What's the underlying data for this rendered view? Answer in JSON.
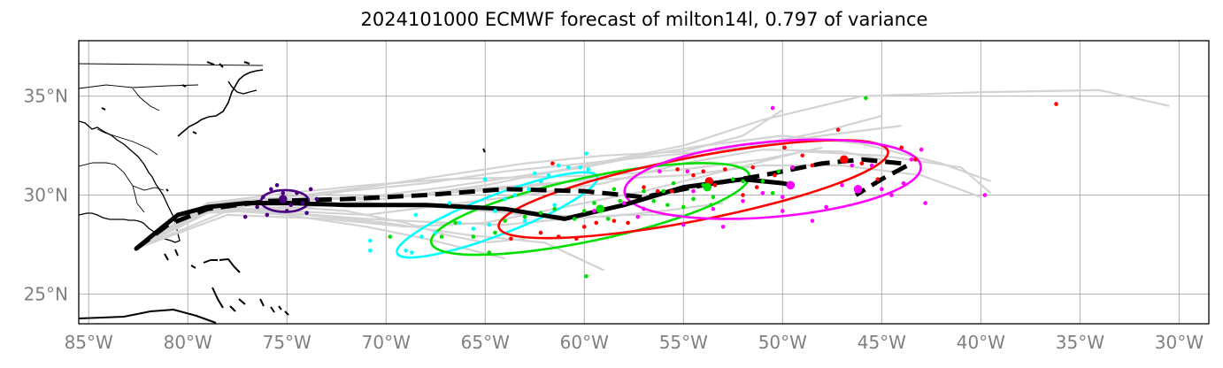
{
  "title": "2024101000 ECMWF forecast of milton14l, 0.797 of variance",
  "map": {
    "projection": "PlateCarree",
    "lon_range": [
      -85.5,
      -28.5
    ],
    "lat_range": [
      23.5,
      37.8
    ],
    "lon_ticks": [
      -85,
      -80,
      -75,
      -70,
      -65,
      -60,
      -55,
      -50,
      -45,
      -40,
      -35,
      -30
    ],
    "lon_tick_labels": [
      "85°W",
      "80°W",
      "75°W",
      "70°W",
      "65°W",
      "60°W",
      "55°W",
      "50°W",
      "45°W",
      "40°W",
      "35°W",
      "30°W"
    ],
    "lat_ticks": [
      25,
      30,
      35
    ],
    "lat_tick_labels": [
      "25°N",
      "30°N",
      "35°N"
    ],
    "grid": true,
    "colors": {
      "grid": "#b0b0b0",
      "coast": "#000000",
      "ensemble": "#d3d3d3",
      "mean_track": "#000000",
      "cluster_initial": "#4b0082",
      "cluster_cyan": "#00ffff",
      "cluster_green": "#00e000",
      "cluster_red": "#ff0000",
      "cluster_magenta": "#ff00ff"
    }
  },
  "tracks": {
    "solid_mean": [
      [
        -82.6,
        27.3
      ],
      [
        -81.5,
        28.2
      ],
      [
        -80.5,
        29.0
      ],
      [
        -79.0,
        29.4
      ],
      [
        -77.0,
        29.6
      ],
      [
        -75.0,
        29.6
      ],
      [
        -72.0,
        29.5
      ],
      [
        -68.0,
        29.5
      ],
      [
        -64.0,
        29.3
      ],
      [
        -61.0,
        28.8
      ],
      [
        -58.0,
        29.5
      ],
      [
        -55.0,
        30.4
      ],
      [
        -52.0,
        30.8
      ],
      [
        -50.0,
        30.6
      ],
      [
        -49.5,
        30.5
      ]
    ],
    "dashed_mean": [
      [
        -82.6,
        27.3
      ],
      [
        -81.0,
        28.5
      ],
      [
        -79.0,
        29.3
      ],
      [
        -76.0,
        29.7
      ],
      [
        -72.0,
        29.8
      ],
      [
        -68.0,
        30.0
      ],
      [
        -64.0,
        30.3
      ],
      [
        -60.0,
        30.2
      ],
      [
        -57.0,
        29.9
      ],
      [
        -54.0,
        30.5
      ],
      [
        -51.0,
        31.0
      ],
      [
        -48.0,
        31.6
      ],
      [
        -46.0,
        31.8
      ],
      [
        -44.0,
        31.6
      ],
      [
        -43.7,
        31.5
      ],
      [
        -45.0,
        30.8
      ],
      [
        -46.3,
        30.0
      ]
    ],
    "ensemble": [
      [
        [
          -82.6,
          27.3
        ],
        [
          -80,
          29
        ],
        [
          -76,
          29.6
        ],
        [
          -72,
          30.2
        ],
        [
          -68,
          30.6
        ],
        [
          -64,
          31.2
        ],
        [
          -60,
          31.6
        ],
        [
          -56,
          32.0
        ],
        [
          -52,
          32.4
        ],
        [
          -48,
          33.0
        ],
        [
          -44,
          33.5
        ]
      ],
      [
        [
          -82.6,
          27.3
        ],
        [
          -79,
          29.5
        ],
        [
          -75,
          29.8
        ],
        [
          -70,
          29.8
        ],
        [
          -65,
          30.5
        ],
        [
          -60,
          31.5
        ],
        [
          -55,
          32.5
        ],
        [
          -51,
          33.8
        ],
        [
          -46,
          35.0
        ],
        [
          -40,
          35.2
        ],
        [
          -34,
          35.3
        ],
        [
          -30.5,
          34.5
        ]
      ],
      [
        [
          -82.6,
          27.3
        ],
        [
          -78,
          29.2
        ],
        [
          -74,
          29.0
        ],
        [
          -70,
          28.6
        ],
        [
          -66,
          28.0
        ],
        [
          -62,
          27.6
        ],
        [
          -59,
          26.2
        ]
      ],
      [
        [
          -82.6,
          27.3
        ],
        [
          -78,
          29.0
        ],
        [
          -73,
          28.8
        ],
        [
          -69,
          28.4
        ],
        [
          -65,
          28.6
        ],
        [
          -61,
          29.4
        ],
        [
          -57,
          30.2
        ],
        [
          -53,
          31.2
        ],
        [
          -49,
          32.2
        ],
        [
          -45,
          32.0
        ],
        [
          -41,
          31.4
        ],
        [
          -39.5,
          30.1
        ]
      ],
      [
        [
          -82.6,
          27.3
        ],
        [
          -79,
          29.4
        ],
        [
          -75,
          29.2
        ],
        [
          -71,
          29.0
        ],
        [
          -67,
          29.5
        ],
        [
          -63,
          30.0
        ],
        [
          -59,
          30.6
        ],
        [
          -55,
          31.6
        ],
        [
          -51,
          32.3
        ],
        [
          -47,
          32.2
        ],
        [
          -44,
          31.6
        ]
      ],
      [
        [
          -82.6,
          27.3
        ],
        [
          -79,
          29.6
        ],
        [
          -75,
          29.9
        ],
        [
          -71,
          30.4
        ],
        [
          -67,
          31.0
        ],
        [
          -63,
          31.6
        ],
        [
          -59,
          32.0
        ],
        [
          -55,
          32.2
        ],
        [
          -52,
          33.0
        ],
        [
          -50,
          34.3
        ]
      ],
      [
        [
          -82.6,
          27.3
        ],
        [
          -79,
          29.3
        ],
        [
          -75,
          29.0
        ],
        [
          -71,
          28.4
        ],
        [
          -68,
          27.8
        ],
        [
          -66,
          27.3
        ],
        [
          -64,
          26.8
        ]
      ],
      [
        [
          -82.6,
          27.3
        ],
        [
          -79,
          29.1
        ],
        [
          -75,
          29.3
        ],
        [
          -71,
          29.7
        ],
        [
          -67,
          30.2
        ],
        [
          -63,
          30.5
        ],
        [
          -59,
          30.8
        ],
        [
          -55,
          31.0
        ],
        [
          -51,
          31.5
        ],
        [
          -47,
          31.5
        ],
        [
          -43,
          31.0
        ],
        [
          -40,
          29.9
        ]
      ],
      [
        [
          -82.6,
          27.3
        ],
        [
          -79,
          29.4
        ],
        [
          -75,
          29.5
        ],
        [
          -71,
          29.6
        ],
        [
          -67,
          29.4
        ],
        [
          -63,
          29.0
        ],
        [
          -59,
          28.9
        ],
        [
          -56,
          29.2
        ],
        [
          -53,
          29.6
        ]
      ],
      [
        [
          -82.6,
          27.3
        ],
        [
          -79,
          29.5
        ],
        [
          -75,
          29.7
        ],
        [
          -71,
          29.9
        ],
        [
          -67,
          30.1
        ],
        [
          -63,
          30.4
        ],
        [
          -60,
          30.8
        ],
        [
          -57,
          31.4
        ],
        [
          -54,
          32.0
        ],
        [
          -51,
          32.6
        ],
        [
          -48,
          33.2
        ],
        [
          -45,
          34.0
        ]
      ],
      [
        [
          -82.6,
          27.3
        ],
        [
          -79,
          29.3
        ],
        [
          -75,
          29.1
        ],
        [
          -71,
          28.8
        ],
        [
          -67,
          28.6
        ],
        [
          -64,
          28.5
        ],
        [
          -61,
          28.8
        ],
        [
          -58,
          29.0
        ],
        [
          -55,
          29.0
        ]
      ],
      [
        [
          -82.6,
          27.3
        ],
        [
          -79,
          29.6
        ],
        [
          -75,
          29.8
        ],
        [
          -71,
          29.9
        ],
        [
          -67,
          30.4
        ],
        [
          -63,
          31.0
        ],
        [
          -60,
          31.4
        ],
        [
          -57,
          32.0
        ],
        [
          -54,
          32.5
        ],
        [
          -50,
          33.0
        ],
        [
          -46,
          32.6
        ],
        [
          -42,
          31.6
        ],
        [
          -39.5,
          30.7
        ]
      ],
      [
        [
          -82.6,
          27.3
        ],
        [
          -79,
          29.2
        ],
        [
          -75,
          29.4
        ],
        [
          -72,
          29.2
        ],
        [
          -69,
          28.6
        ],
        [
          -67,
          28.0
        ],
        [
          -65,
          27.6
        ],
        [
          -63,
          27.8
        ]
      ],
      [
        [
          -82.6,
          27.3
        ],
        [
          -79,
          29.6
        ],
        [
          -75,
          30.1
        ],
        [
          -71,
          30.5
        ],
        [
          -67,
          30.8
        ],
        [
          -63,
          30.9
        ],
        [
          -59,
          31.0
        ],
        [
          -55,
          31.3
        ],
        [
          -51,
          31.8
        ],
        [
          -48,
          32.4
        ]
      ]
    ]
  },
  "ellipses": [
    {
      "name": "initial",
      "cx": -75.1,
      "cy": 29.7,
      "rx": 1.2,
      "ry": 0.55,
      "angle": 0,
      "color": "#4b0082"
    },
    {
      "name": "cyan",
      "cx": -64.4,
      "cy": 29.0,
      "rx": 5.4,
      "ry": 1.0,
      "angle": 21,
      "color": "#00ffff"
    },
    {
      "name": "green",
      "cx": -59.7,
      "cy": 29.3,
      "rx": 8.2,
      "ry": 1.6,
      "angle": 12,
      "color": "#00e000"
    },
    {
      "name": "red",
      "cx": -54.5,
      "cy": 30.3,
      "rx": 10.0,
      "ry": 1.6,
      "angle": 11,
      "color": "#ff0000"
    },
    {
      "name": "magenta",
      "cx": -50.5,
      "cy": 30.8,
      "rx": 7.5,
      "ry": 1.9,
      "angle": 5,
      "color": "#ff00ff"
    }
  ],
  "centroids": [
    {
      "lon": -53.7,
      "lat": 30.7,
      "color": "#ff0000"
    },
    {
      "lon": -53.8,
      "lat": 30.4,
      "color": "#00e000"
    },
    {
      "lon": -49.6,
      "lat": 30.5,
      "color": "#ff00ff"
    },
    {
      "lon": -46.9,
      "lat": 31.8,
      "color": "#ff0000"
    },
    {
      "lon": -46.2,
      "lat": 30.3,
      "color": "#ff00ff"
    },
    {
      "lon": -59.2,
      "lat": 29.3,
      "color": "#00e000"
    },
    {
      "lon": -75.2,
      "lat": 29.8,
      "color": "#4b0082"
    }
  ],
  "points": {
    "indigo": [
      [
        -76.5,
        29.4
      ],
      [
        -75.8,
        30.3
      ],
      [
        -75.5,
        30.5
      ],
      [
        -75.0,
        29.2
      ],
      [
        -74.5,
        30.1
      ],
      [
        -74.2,
        29.6
      ],
      [
        -74.0,
        29.1
      ],
      [
        -73.8,
        30.3
      ],
      [
        -76.0,
        29.0
      ],
      [
        -75.2,
        30.1
      ],
      [
        -74.8,
        29.5
      ],
      [
        -76.2,
        29.9
      ],
      [
        -77.1,
        28.9
      ],
      [
        -73.5,
        29.8
      ]
    ],
    "cyan": [
      [
        -70.8,
        27.7
      ],
      [
        -70.8,
        27.2
      ],
      [
        -69.0,
        27.2
      ],
      [
        -68.7,
        27.1
      ],
      [
        -68.2,
        27.9
      ],
      [
        -67.5,
        28.1
      ],
      [
        -66.3,
        28.6
      ],
      [
        -65.6,
        28.3
      ],
      [
        -64.8,
        28.5
      ],
      [
        -64.0,
        29.8
      ],
      [
        -63.5,
        30.0
      ],
      [
        -62.8,
        30.3
      ],
      [
        -62.2,
        30.7
      ],
      [
        -61.8,
        31.0
      ],
      [
        -61.3,
        31.5
      ],
      [
        -60.8,
        31.4
      ],
      [
        -60.2,
        31.4
      ],
      [
        -59.9,
        32.1
      ],
      [
        -59.8,
        31.3
      ],
      [
        -64.5,
        29.2
      ],
      [
        -63.0,
        28.7
      ],
      [
        -61.5,
        29.5
      ],
      [
        -65.0,
        30.8
      ],
      [
        -62.5,
        31.1
      ],
      [
        -66.8,
        29.6
      ],
      [
        -68.5,
        29.0
      ]
    ],
    "green": [
      [
        -69.8,
        27.9
      ],
      [
        -67.2,
        27.9
      ],
      [
        -66.5,
        28.6
      ],
      [
        -65.6,
        27.9
      ],
      [
        -64.8,
        27.1
      ],
      [
        -64.5,
        28.1
      ],
      [
        -64.0,
        28.7
      ],
      [
        -63.0,
        28.9
      ],
      [
        -62.2,
        29.1
      ],
      [
        -61.5,
        29.3
      ],
      [
        -60.5,
        28.8
      ],
      [
        -60.0,
        29.2
      ],
      [
        -59.5,
        29.6
      ],
      [
        -58.8,
        28.8
      ],
      [
        -58.5,
        30.3
      ],
      [
        -58.2,
        29.7
      ],
      [
        -57.0,
        30.2
      ],
      [
        -56.5,
        29.7
      ],
      [
        -56.0,
        30.2
      ],
      [
        -55.5,
        30.6
      ],
      [
        -55.0,
        29.4
      ],
      [
        -54.5,
        29.8
      ],
      [
        -54.0,
        30.5
      ],
      [
        -53.5,
        29.9
      ],
      [
        -52.5,
        30.8
      ],
      [
        -52.0,
        30.7
      ],
      [
        -51.0,
        30.7
      ],
      [
        -50.2,
        31.2
      ],
      [
        -50.5,
        30.1
      ],
      [
        -45.8,
        34.9
      ],
      [
        -59.9,
        25.9
      ],
      [
        -53.6,
        29.5
      ],
      [
        -55.8,
        29.5
      ]
    ],
    "red": [
      [
        -62.2,
        28.1
      ],
      [
        -61.3,
        27.9
      ],
      [
        -60.4,
        27.8
      ],
      [
        -60.0,
        28.4
      ],
      [
        -59.4,
        28.6
      ],
      [
        -58.5,
        28.7
      ],
      [
        -57.8,
        28.6
      ],
      [
        -57.0,
        30.4
      ],
      [
        -56.3,
        30.2
      ],
      [
        -55.6,
        30.2
      ],
      [
        -55.3,
        31.3
      ],
      [
        -54.5,
        31.0
      ],
      [
        -54.0,
        31.2
      ],
      [
        -53.4,
        30.5
      ],
      [
        -52.9,
        31.3
      ],
      [
        -52.0,
        30.0
      ],
      [
        -51.3,
        30.4
      ],
      [
        -50.4,
        31.0
      ],
      [
        -49.9,
        32.4
      ],
      [
        -49.0,
        32.0
      ],
      [
        -48.5,
        31.5
      ],
      [
        -47.2,
        33.3
      ],
      [
        -46.0,
        31.6
      ],
      [
        -45.2,
        30.8
      ],
      [
        -44.0,
        32.4
      ],
      [
        -43.3,
        31.8
      ],
      [
        -36.2,
        34.6
      ],
      [
        -61.6,
        31.6
      ],
      [
        -63.7,
        27.8
      ],
      [
        -51.5,
        31.4
      ]
    ],
    "magenta": [
      [
        -59.5,
        29.2
      ],
      [
        -58.0,
        29.6
      ],
      [
        -57.0,
        29.3
      ],
      [
        -56.2,
        31.2
      ],
      [
        -55.0,
        28.5
      ],
      [
        -54.5,
        30.2
      ],
      [
        -53.5,
        29.3
      ],
      [
        -53.0,
        28.4
      ],
      [
        -52.0,
        29.7
      ],
      [
        -51.0,
        30.1
      ],
      [
        -50.5,
        34.4
      ],
      [
        -50.0,
        29.9
      ],
      [
        -50.0,
        29.2
      ],
      [
        -49.5,
        31.4
      ],
      [
        -48.5,
        28.7
      ],
      [
        -47.8,
        29.4
      ],
      [
        -47.0,
        30.5
      ],
      [
        -46.5,
        31.5
      ],
      [
        -45.5,
        31.5
      ],
      [
        -45.0,
        30.3
      ],
      [
        -44.5,
        30.0
      ],
      [
        -43.9,
        30.6
      ],
      [
        -43.5,
        31.8
      ],
      [
        -43.0,
        32.3
      ],
      [
        -42.8,
        29.6
      ],
      [
        -39.8,
        30.0
      ],
      [
        -57.3,
        28.9
      ],
      [
        -54.8,
        31.2
      ]
    ]
  }
}
